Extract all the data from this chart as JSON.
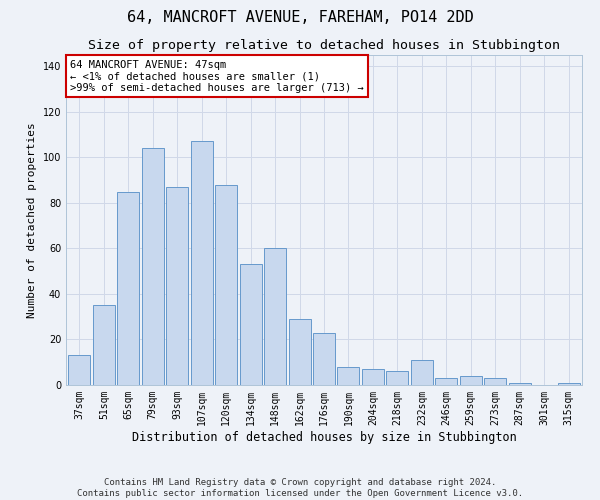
{
  "title": "64, MANCROFT AVENUE, FAREHAM, PO14 2DD",
  "subtitle": "Size of property relative to detached houses in Stubbington",
  "xlabel": "Distribution of detached houses by size in Stubbington",
  "ylabel": "Number of detached properties",
  "bar_values": [
    13,
    35,
    85,
    104,
    87,
    107,
    88,
    53,
    60,
    29,
    23,
    8,
    7,
    6,
    11,
    3,
    4,
    3,
    1,
    0,
    1
  ],
  "bar_labels": [
    "37sqm",
    "51sqm",
    "65sqm",
    "79sqm",
    "93sqm",
    "107sqm",
    "120sqm",
    "134sqm",
    "148sqm",
    "162sqm",
    "176sqm",
    "190sqm",
    "204sqm",
    "218sqm",
    "232sqm",
    "246sqm",
    "259sqm",
    "273sqm",
    "287sqm",
    "301sqm",
    "315sqm"
  ],
  "bar_color": "#c8d8ee",
  "bar_edge_color": "#6699cc",
  "background_color": "#eef2f8",
  "grid_color": "#d0d8e8",
  "annotation_text": "64 MANCROFT AVENUE: 47sqm\n← <1% of detached houses are smaller (1)\n>99% of semi-detached houses are larger (713) →",
  "annotation_box_color": "#ffffff",
  "annotation_border_color": "#cc0000",
  "footer_line1": "Contains HM Land Registry data © Crown copyright and database right 2024.",
  "footer_line2": "Contains public sector information licensed under the Open Government Licence v3.0.",
  "ylim": [
    0,
    145
  ],
  "yticks": [
    0,
    20,
    40,
    60,
    80,
    100,
    120,
    140
  ],
  "title_fontsize": 11,
  "subtitle_fontsize": 9.5,
  "xlabel_fontsize": 8.5,
  "ylabel_fontsize": 8,
  "tick_fontsize": 7,
  "annotation_fontsize": 7.5,
  "footer_fontsize": 6.5
}
